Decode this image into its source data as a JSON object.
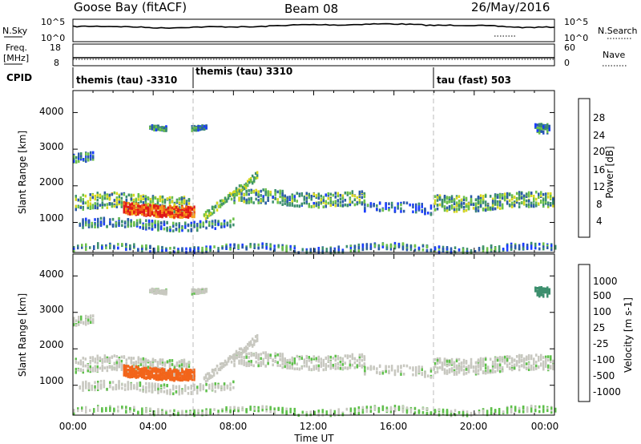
{
  "header": {
    "title": "Goose Bay (fitACF)",
    "beam": "Beam 08",
    "date": "26/May/2016"
  },
  "noise_panel": {
    "left_label": "N.Sky",
    "left_ticks": [
      "10^5",
      "10^0"
    ],
    "right_label": "N.Search",
    "right_ticks": [
      "10^5",
      "10^0"
    ]
  },
  "freq_panel": {
    "left_label_1": "Freq.",
    "left_label_2": "[MHz]",
    "left_ticks": [
      "18",
      "8"
    ],
    "right_label": "Nave",
    "right_ticks": [
      "60",
      "0"
    ]
  },
  "cpid": {
    "label": "CPID",
    "entries": [
      {
        "text": "themis (tau) -3310",
        "start_hour": 0
      },
      {
        "text": "themis (tau) 3310",
        "start_hour": 6
      },
      {
        "text": "tau (fast) 503",
        "start_hour": 18
      }
    ]
  },
  "power_panel": {
    "ylabel": "Slant Range [km]",
    "yticks": [
      "4000",
      "3000",
      "2000",
      "1000"
    ],
    "colorbar_label": "Power [dB]",
    "colorbar_ticks": [
      "28",
      "24",
      "20",
      "16",
      "12",
      "8",
      "4"
    ]
  },
  "velocity_panel": {
    "ylabel": "Slant Range [km]",
    "yticks": [
      "4000",
      "3000",
      "2000",
      "1000"
    ],
    "colorbar_label": "Velocity [m s-1]",
    "colorbar_ticks": [
      "1000",
      "500",
      "100",
      "25",
      "-25",
      "-100",
      "-500",
      "-1000"
    ]
  },
  "x_axis": {
    "label": "Time UT",
    "ticks": [
      "00:00",
      "04:00",
      "08:00",
      "12:00",
      "16:00",
      "20:00",
      "00:00"
    ]
  },
  "chart_data": {
    "type": "heatmap",
    "title": "Goose Bay (fitACF)",
    "x_range_hours": [
      0,
      24
    ],
    "y_range_km": [
      180,
      4600
    ],
    "power_scale_db": [
      0,
      30
    ],
    "velocity_scale_ms": [
      -1000,
      1000
    ],
    "mode_change_hours": [
      6,
      18
    ],
    "power_colors": [
      "#1a3cff",
      "#2b5aa8",
      "#3d8f6e",
      "#6cc04a",
      "#d7d81f",
      "#f5a01a",
      "#f2641a",
      "#e01818"
    ],
    "velocity_colors": [
      "#e01818",
      "#f2641a",
      "#f59a1a",
      "#c8c8c0",
      "#c8c8c0",
      "#5ec04a",
      "#3d8f6e",
      "#2b5aa8",
      "#1a3cff"
    ],
    "scatter_regions": [
      {
        "name": "main band",
        "t0": 0.2,
        "t1": 24,
        "r_center_km": 1600,
        "r_width_km": 420
      },
      {
        "name": "lower band",
        "t0": 0.3,
        "t1": 8,
        "r_center_km": 1000,
        "r_width_km": 260
      },
      {
        "name": "strong echoes",
        "t0": 2.5,
        "t1": 6,
        "r_center_km": 1380,
        "r_width_km": 300,
        "power_db": 27,
        "velocity_ms": -350
      },
      {
        "name": "ground scatter",
        "t0": 0,
        "t1": 24,
        "r_center_km": 320,
        "r_width_km": 120
      },
      {
        "name": "upper patch",
        "t0": 3.5,
        "t1": 6.5,
        "r_center_km": 3650,
        "r_width_km": 120
      }
    ]
  }
}
